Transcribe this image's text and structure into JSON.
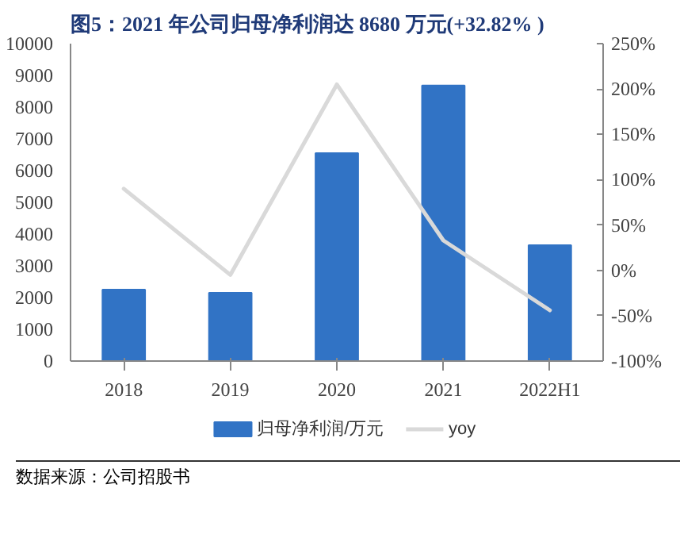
{
  "chart_data": {
    "type": "bar",
    "title": "图5：2021 年公司归母净利润达 8680 万元(+32.82% )",
    "categories": [
      "2018",
      "2019",
      "2020",
      "2021",
      "2022H1"
    ],
    "series": [
      {
        "name": "归母净利润/万元",
        "color": "#3173c5",
        "values": [
          2250,
          2150,
          6550,
          8680,
          3650
        ]
      },
      {
        "name": "yoy",
        "type": "line",
        "axis": "y2",
        "color": "#d9d9d9",
        "values": [
          90,
          -5,
          205,
          33,
          -44
        ]
      }
    ],
    "ylim": [
      0,
      10000
    ],
    "yticks": [
      0,
      1000,
      2000,
      3000,
      4000,
      5000,
      6000,
      7000,
      8000,
      9000,
      10000
    ],
    "y2lim": [
      -100,
      250
    ],
    "y2ticks": [
      {
        "value": -100,
        "label": "-100%"
      },
      {
        "value": -50,
        "label": "-50%"
      },
      {
        "value": 0,
        "label": "0%"
      },
      {
        "value": 50,
        "label": "50%"
      },
      {
        "value": 100,
        "label": "100%"
      },
      {
        "value": 150,
        "label": "150%"
      },
      {
        "value": 200,
        "label": "200%"
      },
      {
        "value": 250,
        "label": "250%"
      }
    ],
    "grid": false,
    "legend": "bottom",
    "annotations": [
      "数据来源：公司招股书"
    ]
  }
}
